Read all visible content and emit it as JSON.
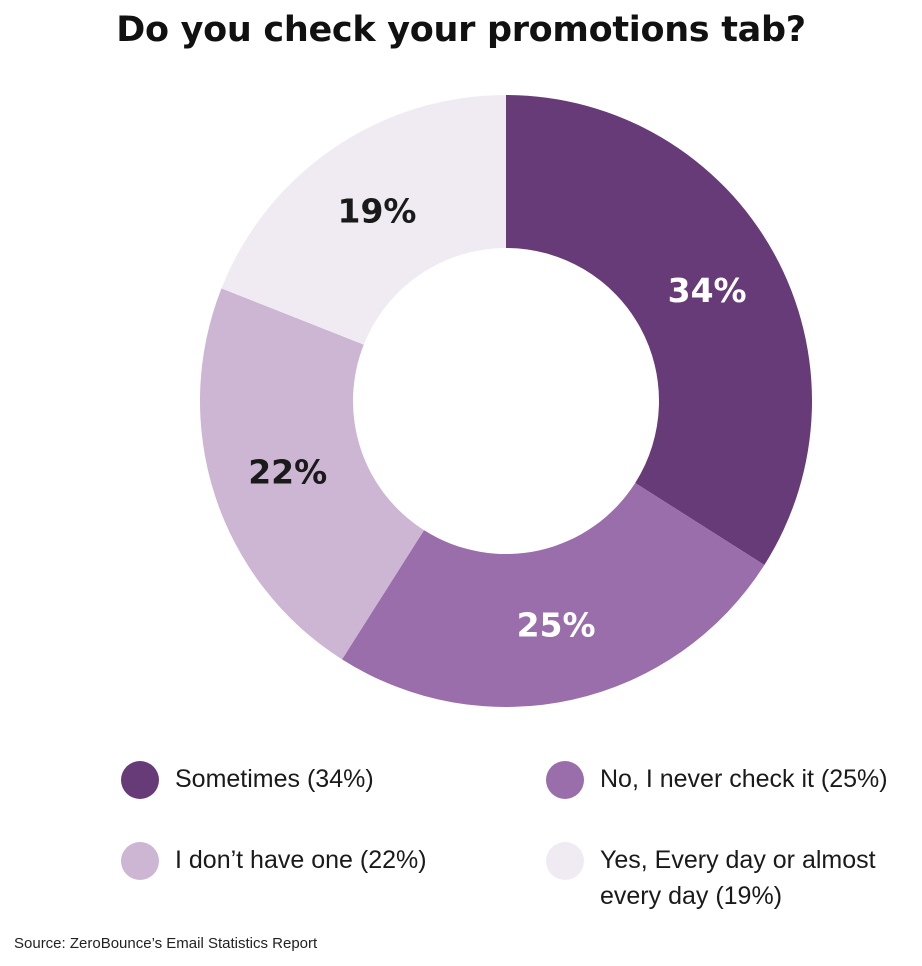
{
  "chart_data": {
    "type": "pie",
    "title": "Do you check your promotions tab?",
    "donut": true,
    "slices": [
      {
        "label": "Sometimes (34%)",
        "value": 34,
        "display": "34%",
        "color": "#673b77",
        "label_color": "#ffffff"
      },
      {
        "label": "No, I never check it (25%)",
        "value": 25,
        "display": "25%",
        "color": "#9a6dab",
        "label_color": "#ffffff"
      },
      {
        "label": "I don’t have one (22%)",
        "value": 22,
        "display": "22%",
        "color": "#cdb5d4",
        "label_color": "#1a1a1a"
      },
      {
        "label": "Yes, Every day or almost every day (19%)",
        "value": 19,
        "display": "19%",
        "color": "#f0ebf2",
        "label_color": "#1a1a1a"
      }
    ],
    "legend": [
      {
        "label": "Sometimes (34%)",
        "color": "#673b77"
      },
      {
        "label": "No, I never check it (25%)",
        "color": "#9a6dab"
      },
      {
        "label": "I don’t have one (22%)",
        "color": "#cdb5d4"
      },
      {
        "label": "Yes, Every day or almost every day (19%)",
        "color": "#f0ebf2"
      }
    ],
    "legend_placement": "bottom",
    "source": "Source: ZeroBounce’s Email Statistics Report"
  }
}
